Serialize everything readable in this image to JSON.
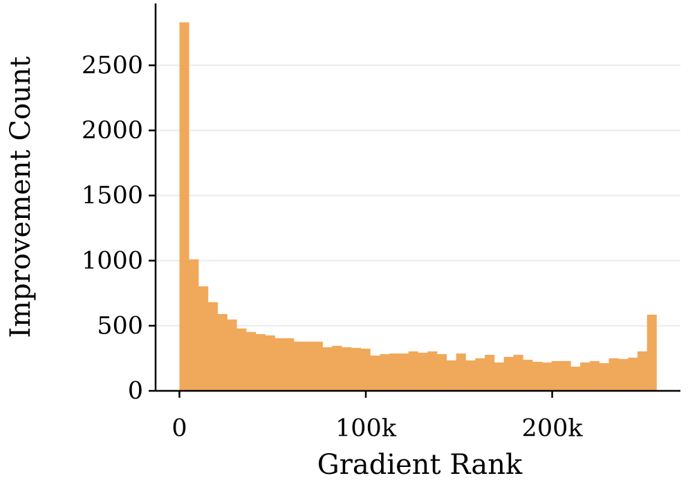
{
  "chart_data": {
    "type": "histogram",
    "xlabel": "Gradient Rank",
    "ylabel": "Improvement Count",
    "bins": [
      0,
      5120,
      10240,
      15360,
      20480,
      25600,
      30720,
      35840,
      40960,
      46080,
      51200,
      56320,
      61440,
      66560,
      71680,
      76800,
      81920,
      87040,
      92160,
      97280,
      102400,
      107520,
      112640,
      117760,
      122880,
      128000,
      133120,
      138240,
      143360,
      148480,
      153600,
      158720,
      163840,
      168960,
      174080,
      179200,
      184320,
      189440,
      194560,
      199680,
      204800,
      209920,
      215040,
      220160,
      225280,
      230400,
      235520,
      240640,
      245760,
      250880,
      256000
    ],
    "values": [
      2830,
      1010,
      803,
      681,
      590,
      548,
      479,
      452,
      436,
      426,
      404,
      404,
      378,
      378,
      378,
      335,
      346,
      335,
      330,
      324,
      271,
      282,
      287,
      287,
      303,
      293,
      303,
      282,
      234,
      287,
      234,
      250,
      277,
      218,
      261,
      277,
      239,
      223,
      218,
      229,
      229,
      186,
      218,
      229,
      213,
      250,
      245,
      255,
      303,
      585
    ],
    "color": "#f0a95a",
    "xlim": [
      -12800,
      268800
    ],
    "ylim": [
      0,
      2975
    ],
    "xticks": [
      0,
      {
        "value": 100000,
        "label": "100k"
      },
      {
        "value": 200000,
        "label": "200k"
      }
    ],
    "yticks": [
      0,
      500,
      1000,
      1500,
      2000,
      2500
    ],
    "grid": true
  }
}
